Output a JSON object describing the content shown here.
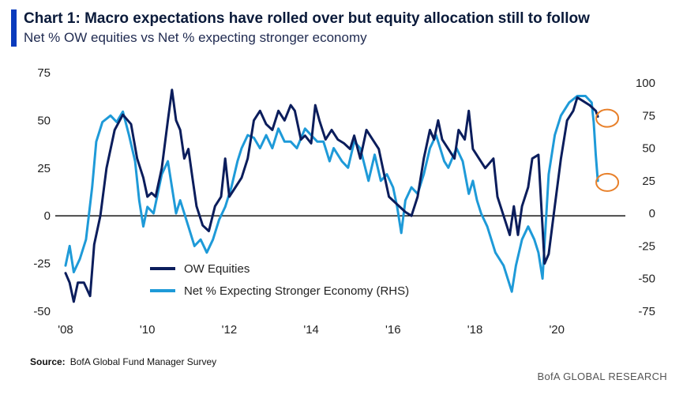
{
  "title": "Chart 1: Macro expectations have rolled over but  equity allocation still to follow",
  "subtitle": "Net % OW equities vs Net % expecting stronger economy",
  "source_label": "Source:",
  "source_text": "BofA Global Fund Manager Survey",
  "brand": "BofA GLOBAL RESEARCH",
  "colors": {
    "ow_equities": "#0b1d5c",
    "stronger_economy": "#1e9ad8",
    "highlight": "#e8802a"
  },
  "chart_data": {
    "type": "line",
    "title": "Chart 1: Macro expectations have rolled over but  equity allocation still to follow",
    "subtitle": "Net % OW equities vs Net % expecting stronger economy",
    "x_ticks": [
      "'08",
      "'10",
      "'12",
      "'14",
      "'16",
      "'18",
      "'20"
    ],
    "x_range": [
      2008,
      2021.5
    ],
    "y_left": {
      "range": [
        -50,
        75
      ],
      "ticks": [
        "75",
        "50",
        "25",
        "0",
        "-25",
        "-50"
      ]
    },
    "y_right": {
      "range": [
        -75,
        100
      ],
      "ticks": [
        "100",
        "75",
        "50",
        "25",
        "0",
        "-25",
        "-50",
        "-75"
      ]
    },
    "legend_position": "bottom-left",
    "series": [
      {
        "name": "OW Equities",
        "axis": "left",
        "points": [
          [
            2008.0,
            -30
          ],
          [
            2008.1,
            -35
          ],
          [
            2008.2,
            -45
          ],
          [
            2008.3,
            -35
          ],
          [
            2008.45,
            -35
          ],
          [
            2008.6,
            -42
          ],
          [
            2008.7,
            -15
          ],
          [
            2008.85,
            0
          ],
          [
            2009.0,
            25
          ],
          [
            2009.2,
            45
          ],
          [
            2009.4,
            53
          ],
          [
            2009.6,
            48
          ],
          [
            2009.75,
            30
          ],
          [
            2009.9,
            20
          ],
          [
            2010.0,
            10
          ],
          [
            2010.1,
            12
          ],
          [
            2010.2,
            10
          ],
          [
            2010.35,
            25
          ],
          [
            2010.5,
            50
          ],
          [
            2010.6,
            66
          ],
          [
            2010.7,
            50
          ],
          [
            2010.8,
            45
          ],
          [
            2010.9,
            30
          ],
          [
            2011.0,
            35
          ],
          [
            2011.1,
            20
          ],
          [
            2011.2,
            5
          ],
          [
            2011.35,
            -5
          ],
          [
            2011.5,
            -8
          ],
          [
            2011.65,
            5
          ],
          [
            2011.8,
            10
          ],
          [
            2011.9,
            30
          ],
          [
            2012.0,
            10
          ],
          [
            2012.15,
            15
          ],
          [
            2012.3,
            20
          ],
          [
            2012.45,
            30
          ],
          [
            2012.6,
            50
          ],
          [
            2012.75,
            55
          ],
          [
            2012.9,
            48
          ],
          [
            2013.05,
            45
          ],
          [
            2013.2,
            55
          ],
          [
            2013.35,
            50
          ],
          [
            2013.5,
            58
          ],
          [
            2013.6,
            55
          ],
          [
            2013.75,
            40
          ],
          [
            2013.85,
            42
          ],
          [
            2014.0,
            38
          ],
          [
            2014.1,
            58
          ],
          [
            2014.2,
            50
          ],
          [
            2014.35,
            40
          ],
          [
            2014.5,
            45
          ],
          [
            2014.65,
            40
          ],
          [
            2014.8,
            38
          ],
          [
            2014.95,
            35
          ],
          [
            2015.05,
            42
          ],
          [
            2015.2,
            30
          ],
          [
            2015.35,
            45
          ],
          [
            2015.5,
            40
          ],
          [
            2015.65,
            35
          ],
          [
            2015.8,
            20
          ],
          [
            2015.9,
            10
          ],
          [
            2016.0,
            8
          ],
          [
            2016.15,
            5
          ],
          [
            2016.3,
            2
          ],
          [
            2016.45,
            0
          ],
          [
            2016.6,
            10
          ],
          [
            2016.75,
            30
          ],
          [
            2016.9,
            45
          ],
          [
            2017.0,
            40
          ],
          [
            2017.1,
            50
          ],
          [
            2017.2,
            40
          ],
          [
            2017.35,
            35
          ],
          [
            2017.5,
            30
          ],
          [
            2017.6,
            45
          ],
          [
            2017.75,
            40
          ],
          [
            2017.85,
            55
          ],
          [
            2017.95,
            35
          ],
          [
            2018.1,
            30
          ],
          [
            2018.25,
            25
          ],
          [
            2018.45,
            30
          ],
          [
            2018.55,
            10
          ],
          [
            2018.7,
            0
          ],
          [
            2018.85,
            -10
          ],
          [
            2018.95,
            5
          ],
          [
            2019.05,
            -10
          ],
          [
            2019.15,
            5
          ],
          [
            2019.3,
            15
          ],
          [
            2019.4,
            30
          ],
          [
            2019.55,
            32
          ],
          [
            2019.7,
            -25
          ],
          [
            2019.8,
            -20
          ],
          [
            2019.95,
            5
          ],
          [
            2020.1,
            30
          ],
          [
            2020.25,
            50
          ],
          [
            2020.4,
            55
          ],
          [
            2020.5,
            62
          ],
          [
            2020.65,
            60
          ],
          [
            2020.8,
            58
          ],
          [
            2020.95,
            55
          ],
          [
            2021.0,
            52
          ]
        ]
      },
      {
        "name": "Net % Expecting Stronger Economy (RHS)",
        "axis": "right",
        "points": [
          [
            2008.0,
            -40
          ],
          [
            2008.1,
            -25
          ],
          [
            2008.2,
            -45
          ],
          [
            2008.35,
            -35
          ],
          [
            2008.5,
            -20
          ],
          [
            2008.65,
            20
          ],
          [
            2008.75,
            55
          ],
          [
            2008.9,
            70
          ],
          [
            2009.1,
            75
          ],
          [
            2009.25,
            70
          ],
          [
            2009.4,
            78
          ],
          [
            2009.55,
            60
          ],
          [
            2009.7,
            40
          ],
          [
            2009.8,
            10
          ],
          [
            2009.9,
            -10
          ],
          [
            2010.0,
            5
          ],
          [
            2010.15,
            0
          ],
          [
            2010.35,
            30
          ],
          [
            2010.5,
            40
          ],
          [
            2010.6,
            20
          ],
          [
            2010.7,
            0
          ],
          [
            2010.8,
            10
          ],
          [
            2010.9,
            0
          ],
          [
            2011.0,
            -10
          ],
          [
            2011.15,
            -25
          ],
          [
            2011.3,
            -20
          ],
          [
            2011.45,
            -30
          ],
          [
            2011.6,
            -20
          ],
          [
            2011.75,
            -5
          ],
          [
            2011.9,
            5
          ],
          [
            2012.05,
            20
          ],
          [
            2012.2,
            40
          ],
          [
            2012.3,
            50
          ],
          [
            2012.45,
            60
          ],
          [
            2012.6,
            58
          ],
          [
            2012.75,
            50
          ],
          [
            2012.9,
            60
          ],
          [
            2013.05,
            50
          ],
          [
            2013.2,
            65
          ],
          [
            2013.35,
            55
          ],
          [
            2013.5,
            55
          ],
          [
            2013.65,
            50
          ],
          [
            2013.85,
            65
          ],
          [
            2014.0,
            60
          ],
          [
            2014.15,
            55
          ],
          [
            2014.3,
            55
          ],
          [
            2014.45,
            40
          ],
          [
            2014.55,
            50
          ],
          [
            2014.75,
            40
          ],
          [
            2014.9,
            35
          ],
          [
            2015.05,
            55
          ],
          [
            2015.2,
            50
          ],
          [
            2015.4,
            25
          ],
          [
            2015.55,
            45
          ],
          [
            2015.7,
            25
          ],
          [
            2015.85,
            30
          ],
          [
            2016.0,
            20
          ],
          [
            2016.1,
            5
          ],
          [
            2016.2,
            -15
          ],
          [
            2016.3,
            10
          ],
          [
            2016.45,
            20
          ],
          [
            2016.6,
            15
          ],
          [
            2016.75,
            30
          ],
          [
            2016.9,
            50
          ],
          [
            2017.05,
            60
          ],
          [
            2017.25,
            40
          ],
          [
            2017.35,
            35
          ],
          [
            2017.55,
            50
          ],
          [
            2017.7,
            40
          ],
          [
            2017.85,
            15
          ],
          [
            2017.95,
            25
          ],
          [
            2018.05,
            10
          ],
          [
            2018.15,
            0
          ],
          [
            2018.3,
            -10
          ],
          [
            2018.5,
            -30
          ],
          [
            2018.7,
            -40
          ],
          [
            2018.8,
            -50
          ],
          [
            2018.9,
            -60
          ],
          [
            2019.0,
            -40
          ],
          [
            2019.15,
            -20
          ],
          [
            2019.3,
            -10
          ],
          [
            2019.45,
            -20
          ],
          [
            2019.55,
            -30
          ],
          [
            2019.65,
            -50
          ],
          [
            2019.8,
            30
          ],
          [
            2019.95,
            60
          ],
          [
            2020.1,
            75
          ],
          [
            2020.3,
            85
          ],
          [
            2020.5,
            90
          ],
          [
            2020.7,
            90
          ],
          [
            2020.85,
            85
          ],
          [
            2020.9,
            70
          ],
          [
            2020.95,
            45
          ],
          [
            2021.0,
            25
          ]
        ]
      }
    ],
    "highlights": [
      {
        "series": "OW Equities",
        "x": 2021.0,
        "y": 52,
        "axis": "left"
      },
      {
        "series": "Net % Expecting Stronger Economy (RHS)",
        "x": 2021.0,
        "y": 25,
        "axis": "right"
      }
    ]
  }
}
